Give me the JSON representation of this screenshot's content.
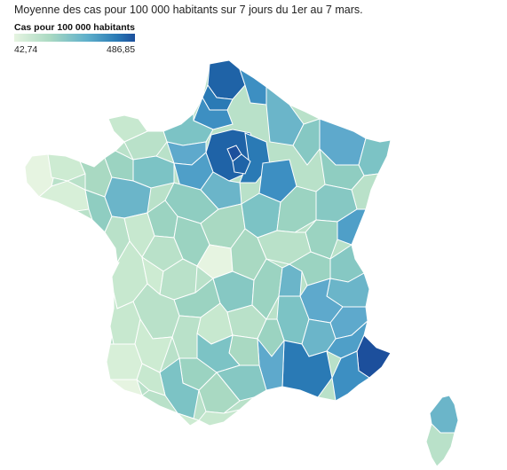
{
  "map": {
    "subtitle": "Moyenne des cas pour 100 000 habitants sur 7 jours du 1er au 7 mars.",
    "legend": {
      "title": "Cas pour 100 000 habitants",
      "min_label": "42,74",
      "max_label": "486,85",
      "min_value": 42.74,
      "max_value": 486.85,
      "color_low": "#e6f4e1",
      "color_high": "#1c4f9c"
    }
  }
}
